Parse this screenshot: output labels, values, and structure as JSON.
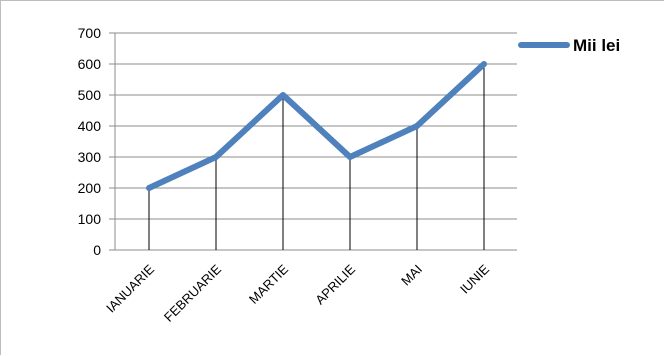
{
  "chart_data": {
    "type": "line",
    "categories": [
      "IANUARIE",
      "FEBRUARIE",
      "MARTIE",
      "APRILIE",
      "MAI",
      "IUNIE"
    ],
    "series": [
      {
        "name": "Mii lei",
        "values": [
          200,
          300,
          500,
          300,
          400,
          600
        ],
        "color": "#4f81bd"
      }
    ],
    "ylim": [
      0,
      700
    ],
    "yticks": [
      "0",
      "100",
      "200",
      "300",
      "400",
      "500",
      "600",
      "700"
    ],
    "grid": true,
    "drop_lines": true,
    "legend_position": "top-right"
  }
}
